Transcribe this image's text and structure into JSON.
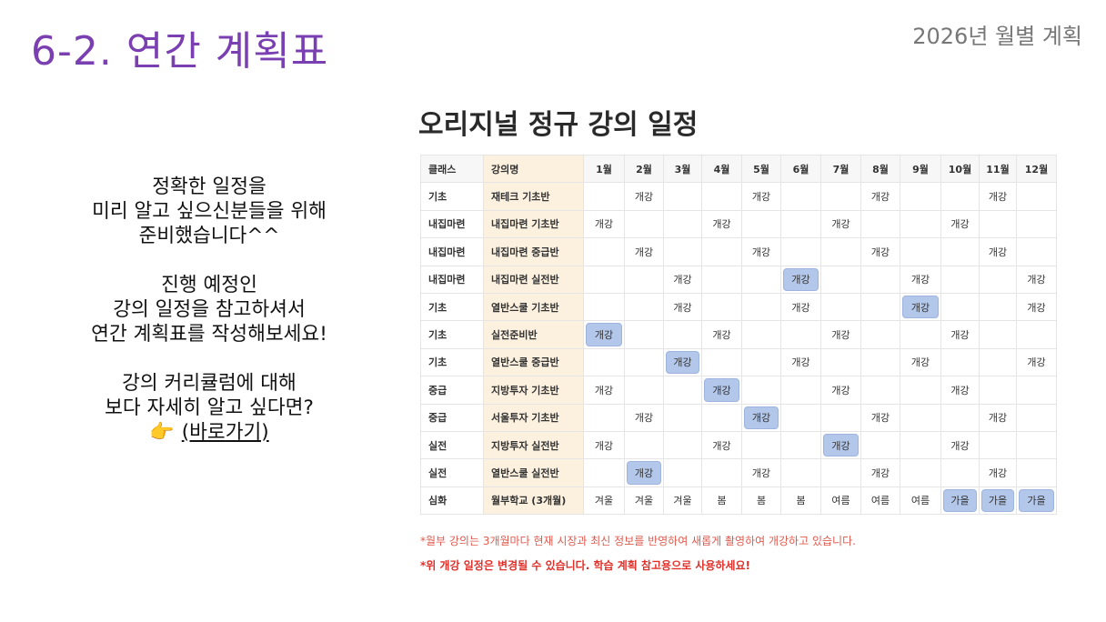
{
  "header": {
    "title": "6-2. 연간 계획표",
    "subtitle": "2026년 월별 계획"
  },
  "intro": {
    "p1": [
      "정확한 일정을",
      "미리 알고 싶으신분들을 위해",
      "준비했습니다^^"
    ],
    "p2": [
      "진행 예정인",
      "강의 일정을 참고하셔서",
      "연간 계획표를 작성해보세요!"
    ],
    "p3": [
      "강의 커리큘럼에 대해",
      "보다 자세히 알고 싶다면?"
    ],
    "link_label": "(바로가기)",
    "link_icon": "pointing-hand-icon"
  },
  "schedule": {
    "title": "오리지널 정규 강의 일정",
    "headers": [
      "클래스",
      "강의명",
      "1월",
      "2월",
      "3월",
      "4월",
      "5월",
      "6월",
      "7월",
      "8월",
      "9월",
      "10월",
      "11월",
      "12월"
    ],
    "highlight_color": "#b3c7ea",
    "rows": [
      {
        "cls": "기초",
        "course": "재테크 기초반",
        "cells": [
          "",
          "개강",
          "",
          "",
          "개강",
          "",
          "",
          "개강",
          "",
          "",
          "개강",
          ""
        ],
        "hl": []
      },
      {
        "cls": "내집마련",
        "course": "내집마련 기초반",
        "cells": [
          "개강",
          "",
          "",
          "개강",
          "",
          "",
          "개강",
          "",
          "",
          "개강",
          "",
          ""
        ],
        "hl": []
      },
      {
        "cls": "내집마련",
        "course": "내집마련 중급반",
        "cells": [
          "",
          "개강",
          "",
          "",
          "개강",
          "",
          "",
          "개강",
          "",
          "",
          "개강",
          ""
        ],
        "hl": []
      },
      {
        "cls": "내집마련",
        "course": "내집마련 실전반",
        "cells": [
          "",
          "",
          "개강",
          "",
          "",
          "개강",
          "",
          "",
          "개강",
          "",
          "",
          "개강"
        ],
        "hl": [
          5
        ]
      },
      {
        "cls": "기초",
        "course": "열반스쿨 기초반",
        "cells": [
          "",
          "",
          "개강",
          "",
          "",
          "개강",
          "",
          "",
          "개강",
          "",
          "",
          "개강"
        ],
        "hl": [
          8
        ]
      },
      {
        "cls": "기초",
        "course": "실전준비반",
        "cells": [
          "개강",
          "",
          "",
          "개강",
          "",
          "",
          "개강",
          "",
          "",
          "개강",
          "",
          ""
        ],
        "hl": [
          0
        ]
      },
      {
        "cls": "기초",
        "course": "열반스쿨 중급반",
        "cells": [
          "",
          "",
          "개강",
          "",
          "",
          "개강",
          "",
          "",
          "개강",
          "",
          "",
          "개강"
        ],
        "hl": [
          2
        ]
      },
      {
        "cls": "중급",
        "course": "지방투자 기초반",
        "cells": [
          "개강",
          "",
          "",
          "개강",
          "",
          "",
          "개강",
          "",
          "",
          "개강",
          "",
          ""
        ],
        "hl": [
          3
        ]
      },
      {
        "cls": "중급",
        "course": "서울투자 기초반",
        "cells": [
          "",
          "개강",
          "",
          "",
          "개강",
          "",
          "",
          "개강",
          "",
          "",
          "개강",
          ""
        ],
        "hl": [
          4
        ]
      },
      {
        "cls": "실전",
        "course": "지방투자 실전반",
        "cells": [
          "개강",
          "",
          "",
          "개강",
          "",
          "",
          "개강",
          "",
          "",
          "개강",
          "",
          ""
        ],
        "hl": [
          6
        ]
      },
      {
        "cls": "실전",
        "course": "열반스쿨 실전반",
        "cells": [
          "",
          "개강",
          "",
          "",
          "개강",
          "",
          "",
          "개강",
          "",
          "",
          "개강",
          ""
        ],
        "hl": [
          1
        ]
      },
      {
        "cls": "심화",
        "course": "월부학교 (3개월)",
        "cells": [
          "겨울",
          "겨울",
          "겨울",
          "봄",
          "봄",
          "봄",
          "여름",
          "여름",
          "여름",
          "가을",
          "가을",
          "가을"
        ],
        "hl": [
          9,
          10,
          11
        ]
      }
    ],
    "note1": "*월부 강의는 3개월마다 현재 시장과 최신 정보를 반영하여 새롭게 촬영하여 개강하고 있습니다.",
    "note2": "*위 개강 일정은 변경될 수 있습니다. 학습 계획 참고용으로 사용하세요!"
  }
}
